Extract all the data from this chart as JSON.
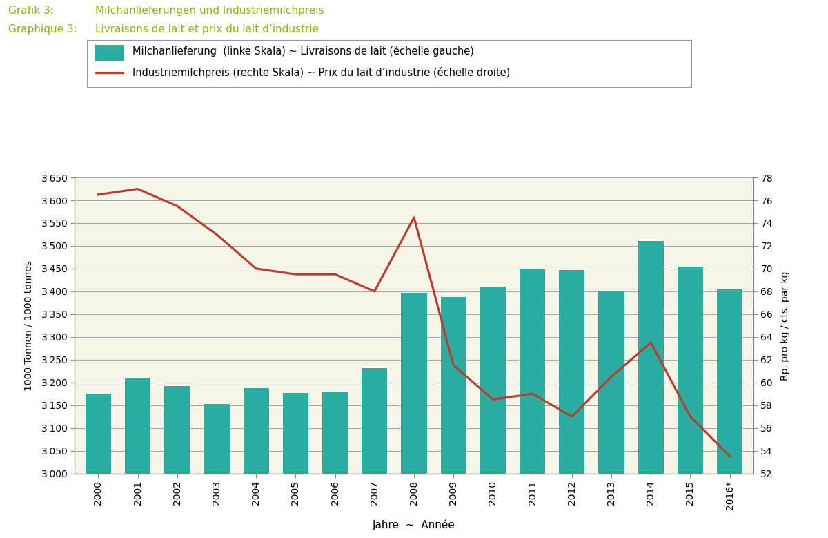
{
  "years": [
    "2000",
    "2001",
    "2002",
    "2003",
    "2004",
    "2005",
    "2006",
    "2007",
    "2008",
    "2009",
    "2010",
    "2011",
    "2012",
    "2013",
    "2014",
    "2015",
    "2016*"
  ],
  "milk_delivery": [
    3175,
    3210,
    3192,
    3152,
    3188,
    3177,
    3178,
    3232,
    3397,
    3387,
    3410,
    3448,
    3447,
    3400,
    3510,
    3455,
    3405
  ],
  "milk_price": [
    76.5,
    77.0,
    75.5,
    73.0,
    70.0,
    69.5,
    69.5,
    68.0,
    74.5,
    61.5,
    58.5,
    59.0,
    57.0,
    60.5,
    63.5,
    57.0,
    53.5
  ],
  "bar_color": "#2aada0",
  "line_color": "#c0392b",
  "background_color": "#f5f5e8",
  "title_line1_de": "Grafik 3:",
  "title_line1_en": "Milchanlieferungen und Industriemilchpreis",
  "title_line2_de": "Graphique 3:",
  "title_line2_en": "Livraisons de lait et prix du lait d’industrie",
  "title_color": "#8db600",
  "legend_bar": "Milchanlieferung  (linke Skala) ~ Livraisons de lait (échelle gauche)",
  "legend_line": "Industriemilchpreis (rechte Skala) ~ Prix du lait d’industrie (échelle droite)",
  "ylabel_left": "1000 Tonnen / 1000 tonnes",
  "ylabel_right": "Rp. pro kg / cts. par kg",
  "xlabel": "Jahre  ~  Année",
  "ylim_left": [
    3000,
    3650
  ],
  "ylim_right": [
    52,
    78
  ],
  "yticks_left": [
    3000,
    3050,
    3100,
    3150,
    3200,
    3250,
    3300,
    3350,
    3400,
    3450,
    3500,
    3550,
    3600,
    3650
  ],
  "yticks_right": [
    52,
    54,
    56,
    58,
    60,
    62,
    64,
    66,
    68,
    70,
    72,
    74,
    76,
    78
  ],
  "grid_color": "#aaaaaa",
  "outer_bg": "#ffffff"
}
